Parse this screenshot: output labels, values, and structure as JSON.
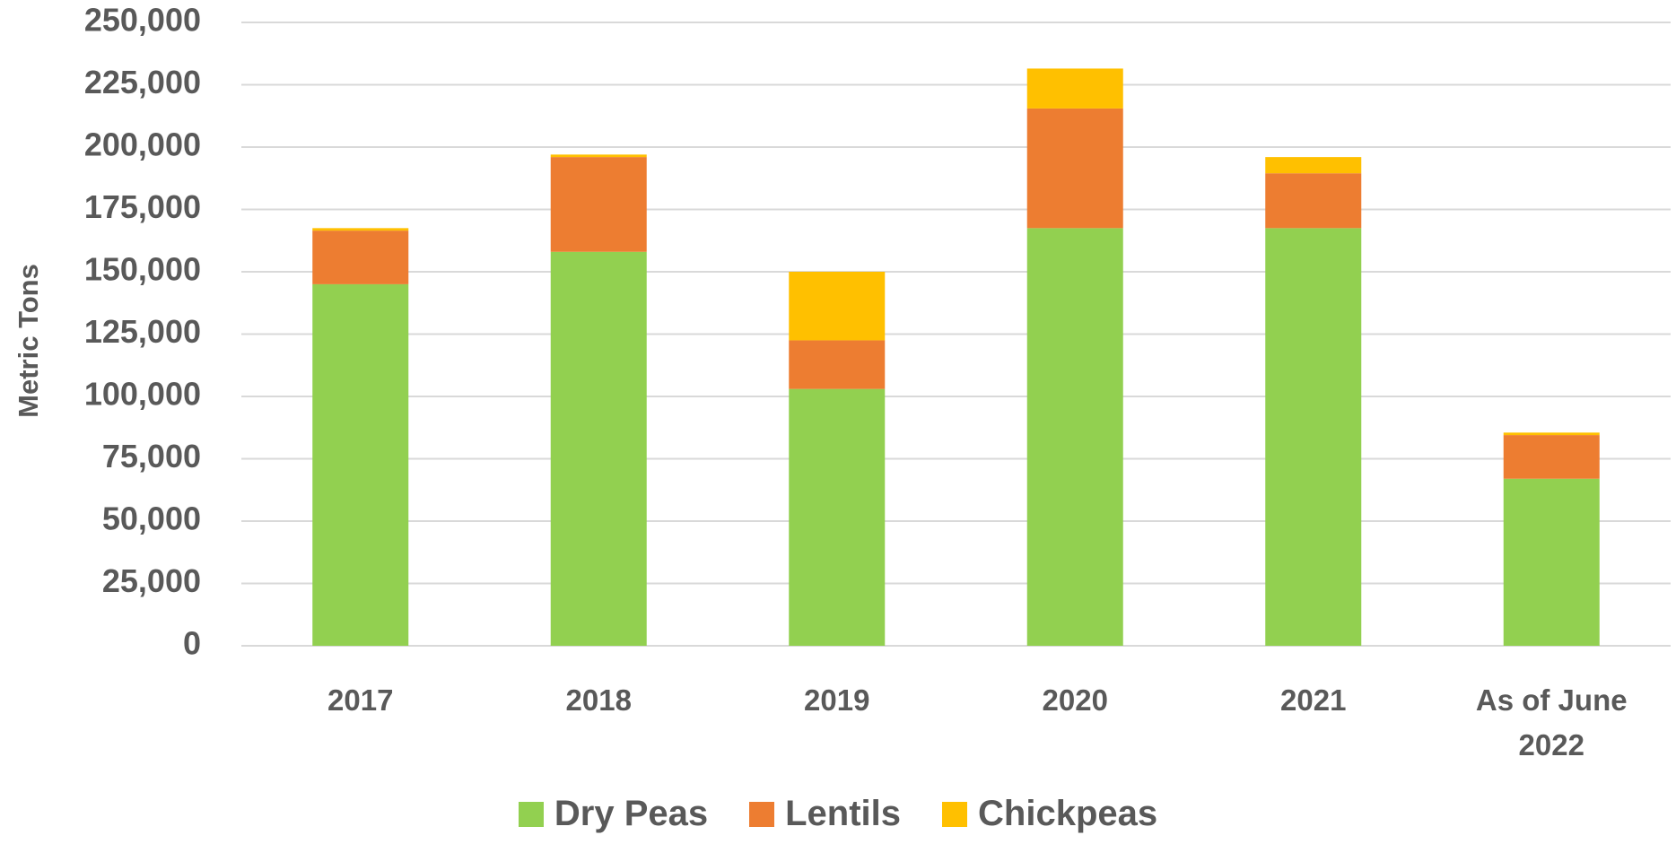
{
  "chart_data": {
    "type": "stacked_bar",
    "ylabel": "Metric Tons",
    "categories": [
      "2017",
      "2018",
      "2019",
      "2020",
      "2021",
      "As of June 2022"
    ],
    "series": [
      {
        "name": "Dry Peas",
        "color": "#92d050",
        "values": [
          145000,
          158000,
          103000,
          167500,
          167500,
          67000
        ]
      },
      {
        "name": "Lentils",
        "color": "#ed7d31",
        "values": [
          21500,
          38000,
          19500,
          48000,
          22000,
          17500
        ]
      },
      {
        "name": "Chickpeas",
        "color": "#ffc000",
        "values": [
          1000,
          1000,
          27500,
          16000,
          6500,
          1000
        ]
      }
    ],
    "ylim": [
      0,
      250000
    ],
    "yticks": [
      0,
      {
        "value": 25000,
        "label": "25,000"
      },
      {
        "value": 50000,
        "label": "50,000"
      },
      {
        "value": 75000,
        "label": "75,000"
      },
      {
        "value": 100000,
        "label": "100,000"
      },
      {
        "value": 125000,
        "label": "125,000"
      },
      {
        "value": 150000,
        "label": "150,000"
      },
      {
        "value": 175000,
        "label": "175,000"
      },
      {
        "value": 200000,
        "label": "200,000"
      },
      {
        "value": 225000,
        "label": "225,000"
      },
      {
        "value": 250000,
        "label": "250,000"
      }
    ],
    "grid": true,
    "legend": "bottom"
  }
}
